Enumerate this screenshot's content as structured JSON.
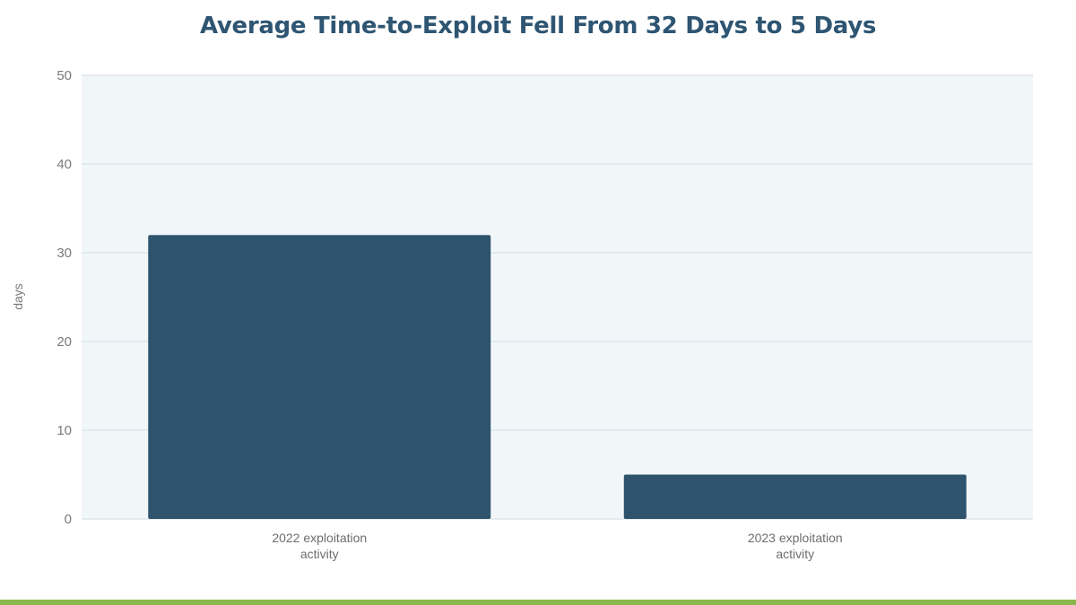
{
  "chart_data": {
    "type": "bar",
    "title": "Average Time-to-Exploit Fell From 32 Days to 5 Days",
    "xlabel": "",
    "ylabel": "days",
    "categories": [
      [
        "2022 exploitation",
        "activity"
      ],
      [
        "2023 exploitation",
        "activity"
      ]
    ],
    "values": [
      32,
      5
    ],
    "ylim": [
      0,
      50
    ],
    "yticks": [
      0,
      10,
      20,
      30,
      40,
      50
    ],
    "grid": true,
    "legend": "none"
  },
  "colors": {
    "bar": "#2e536d",
    "title": "#2e5572",
    "plot_background": "#f1f6f9",
    "gridline": "#dde6ec",
    "accent_bar": "#8ab84a"
  }
}
